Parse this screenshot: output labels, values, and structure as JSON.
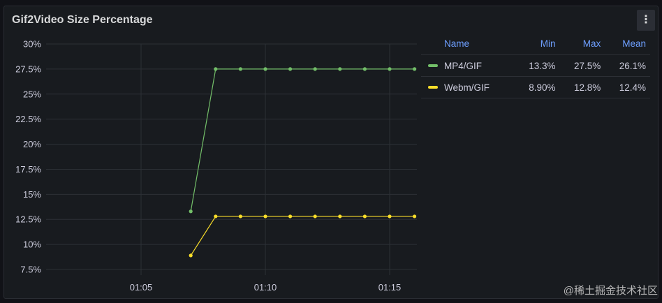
{
  "panel": {
    "title": "Gif2Video Size Percentage",
    "menu_icon": "kebab-menu-icon"
  },
  "watermark": "@稀土掘金技术社区",
  "colors": {
    "background": "#111217",
    "panel": "#181b1f",
    "grid": "#2c3036",
    "mp4": "#73bf69",
    "webm": "#fade2a",
    "legend_header": "#6e9fff"
  },
  "legend": {
    "headers": [
      "Name",
      "Min",
      "Max",
      "Mean"
    ],
    "rows": [
      {
        "name": "MP4/GIF",
        "min": "13.3%",
        "max": "27.5%",
        "mean": "26.1%",
        "color": "#73bf69"
      },
      {
        "name": "Webm/GIF",
        "min": "8.90%",
        "max": "12.8%",
        "mean": "12.4%",
        "color": "#fade2a"
      }
    ]
  },
  "chart_data": {
    "type": "line",
    "title": "Gif2Video Size Percentage",
    "xlabel": "",
    "ylabel": "",
    "x": [
      "01:07",
      "01:08",
      "01:09",
      "01:10",
      "01:11",
      "01:12",
      "01:13",
      "01:14",
      "01:15",
      "01:16"
    ],
    "x_ticks": [
      "01:05",
      "01:10",
      "01:15"
    ],
    "y_ticks": [
      "7.5%",
      "10%",
      "12.5%",
      "15%",
      "17.5%",
      "20%",
      "22.5%",
      "25%",
      "27.5%",
      "30%"
    ],
    "ylim": [
      7.5,
      30
    ],
    "grid": true,
    "legend_position": "right",
    "series": [
      {
        "name": "MP4/GIF",
        "color": "#73bf69",
        "values": [
          13.3,
          27.5,
          27.5,
          27.5,
          27.5,
          27.5,
          27.5,
          27.5,
          27.5,
          27.5
        ]
      },
      {
        "name": "Webm/GIF",
        "color": "#fade2a",
        "values": [
          8.9,
          12.8,
          12.8,
          12.8,
          12.8,
          12.8,
          12.8,
          12.8,
          12.8,
          12.8
        ]
      }
    ]
  }
}
